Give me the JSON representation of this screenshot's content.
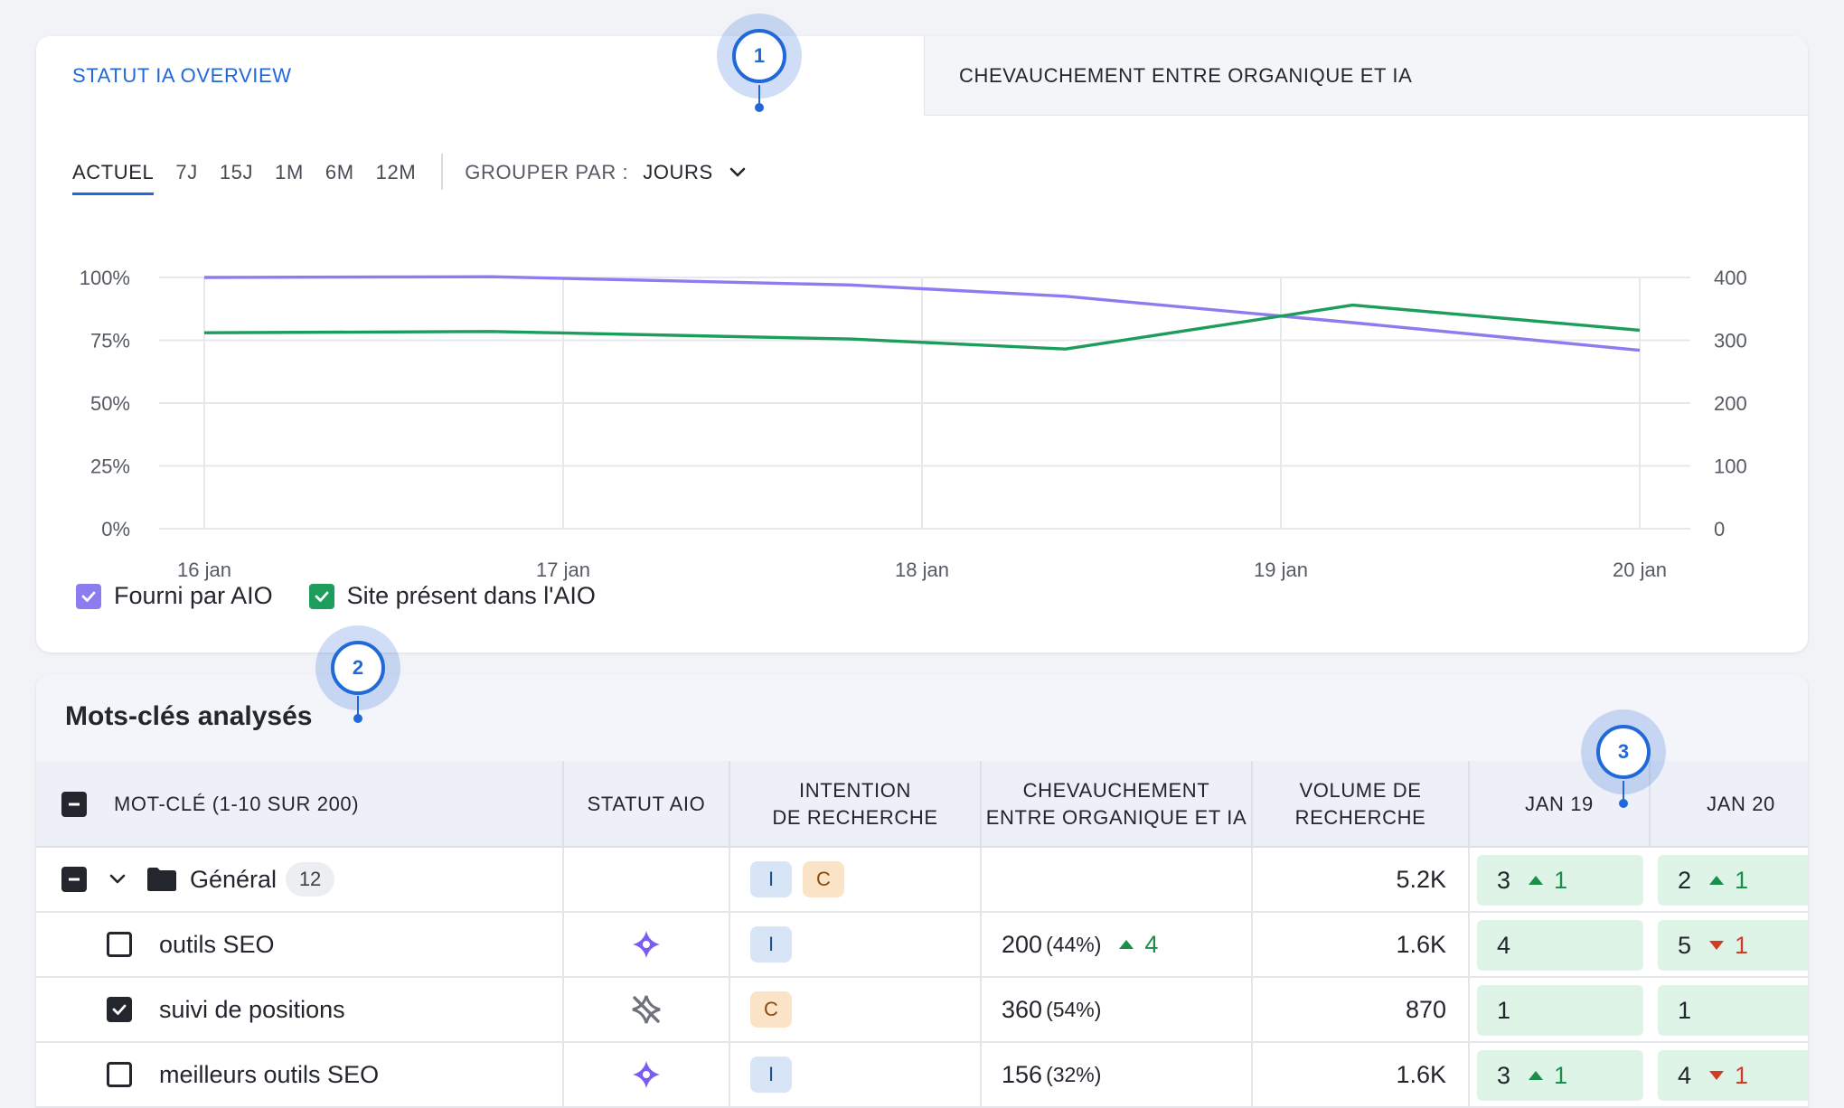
{
  "tabs": [
    {
      "label": "STATUT IA OVERVIEW",
      "active": true
    },
    {
      "label": "CHEVAUCHEMENT ENTRE ORGANIQUE ET IA",
      "active": false
    }
  ],
  "ranges": [
    "ACTUEL",
    "7J",
    "15J",
    "1M",
    "6M",
    "12M"
  ],
  "active_range": "ACTUEL",
  "group_by": {
    "label": "GROUPER PAR :",
    "value": "JOURS"
  },
  "chart_data": {
    "type": "line",
    "x": [
      "16 jan",
      "17 jan",
      "18 jan",
      "19 jan",
      "20 jan"
    ],
    "y_left_ticks": [
      "100%",
      "75%",
      "50%",
      "25%",
      "0%"
    ],
    "y_right_ticks": [
      "400",
      "300",
      "200",
      "100",
      "0"
    ],
    "y_left_range": [
      0,
      100
    ],
    "y_right_range": [
      0,
      400
    ],
    "grid": true,
    "series": [
      {
        "name": "Fourni par AIO",
        "color": "#8b7cf0",
        "axis": "left",
        "points": [
          [
            0,
            100
          ],
          [
            0.8,
            100.3
          ],
          [
            1.8,
            97
          ],
          [
            2.4,
            92.5
          ],
          [
            3.2,
            82
          ],
          [
            4,
            71
          ]
        ]
      },
      {
        "name": "Site présent dans l'AIO",
        "color": "#1c9d5b",
        "axis": "left",
        "points": [
          [
            0,
            78
          ],
          [
            0.8,
            78.5
          ],
          [
            1.8,
            75.5
          ],
          [
            2.4,
            71.5
          ],
          [
            3.2,
            89
          ],
          [
            4,
            79
          ]
        ]
      }
    ],
    "legend_placement": "bottom-left"
  },
  "legend": [
    {
      "label": "Fourni par AIO",
      "color": "#8b7cf0",
      "checked": true
    },
    {
      "label": "Site présent dans l'AIO",
      "color": "#1c9d5b",
      "checked": true
    }
  ],
  "table": {
    "title": "Mots-clés analysés",
    "columns": {
      "keyword": "MOT-CLÉ (1-10 SUR 200)",
      "status": "STATUT AIO",
      "intent": [
        "INTENTION",
        "DE RECHERCHE"
      ],
      "overlap": [
        "CHEVAUCHEMENT",
        "ENTRE ORGANIQUE ET IA"
      ],
      "volume": [
        "VOLUME DE",
        "RECHERCHE"
      ],
      "jan19": "JAN 19",
      "jan20": "JAN 20"
    },
    "group_row": {
      "name": "Général",
      "count": "12",
      "intents": [
        "I",
        "C"
      ],
      "volume": "5.2K",
      "jan19": {
        "rank": "3",
        "delta": "1",
        "dir": "up"
      },
      "jan20": {
        "rank": "2",
        "delta": "1",
        "dir": "up"
      }
    },
    "rows": [
      {
        "keyword": "outils SEO",
        "checked": false,
        "status_icon": "sparkle-icon",
        "intent": "I",
        "overlap_num": "200",
        "overlap_pct": "(44%)",
        "overlap_delta": "4",
        "overlap_dir": "up",
        "volume": "1.6K",
        "jan19": {
          "rank": "4",
          "delta": "",
          "dir": ""
        },
        "jan20": {
          "rank": "5",
          "delta": "1",
          "dir": "down"
        }
      },
      {
        "keyword": "suivi de positions",
        "checked": true,
        "status_icon": "sparkle-off-icon",
        "intent": "C",
        "overlap_num": "360",
        "overlap_pct": "(54%)",
        "overlap_delta": "",
        "overlap_dir": "",
        "volume": "870",
        "jan19": {
          "rank": "1",
          "delta": "",
          "dir": ""
        },
        "jan20": {
          "rank": "1",
          "delta": "",
          "dir": ""
        }
      },
      {
        "keyword": "meilleurs outils SEO",
        "checked": false,
        "status_icon": "sparkle-icon",
        "intent": "I",
        "overlap_num": "156",
        "overlap_pct": "(32%)",
        "overlap_delta": "",
        "overlap_dir": "",
        "volume": "1.6K",
        "jan19": {
          "rank": "3",
          "delta": "1",
          "dir": "up"
        },
        "jan20": {
          "rank": "4",
          "delta": "1",
          "dir": "down"
        }
      }
    ]
  },
  "markers": [
    "1",
    "2",
    "3"
  ]
}
